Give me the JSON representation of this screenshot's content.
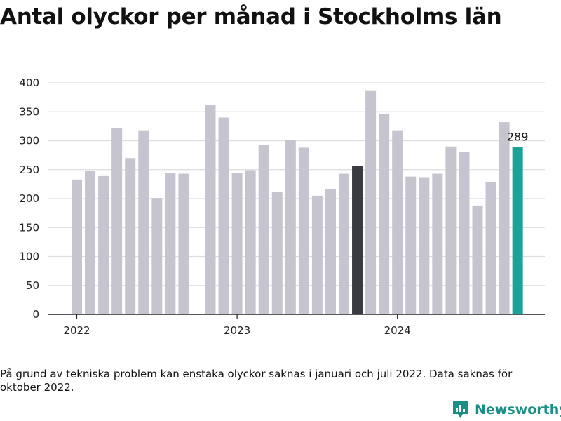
{
  "title": "Antal olyckor per månad i Stockholms län",
  "note": "På grund av tekniska problem kan enstaka olyckor saknas i januari och juli 2022. Data saknas för oktober 2022.",
  "brand": "Newsworthy",
  "colors": {
    "bar": "#c6c4cf",
    "highlight": "#3a3a42",
    "current": "#1aa398",
    "grid": "#dddddd",
    "axis": "#222222"
  },
  "chart_data": {
    "type": "bar",
    "title": "Antal olyckor per månad i Stockholms län",
    "xlabel": "",
    "ylabel": "",
    "ylim": [
      0,
      400
    ],
    "yticks": [
      0,
      50,
      100,
      150,
      200,
      250,
      300,
      350,
      400
    ],
    "xtick_labels": [
      "2022",
      "2023",
      "2024"
    ],
    "grid": true,
    "categories": [
      "2022-01",
      "2022-02",
      "2022-03",
      "2022-04",
      "2022-05",
      "2022-06",
      "2022-07",
      "2022-08",
      "2022-09",
      "2022-10",
      "2022-11",
      "2022-12",
      "2023-01",
      "2023-02",
      "2023-03",
      "2023-04",
      "2023-05",
      "2023-06",
      "2023-07",
      "2023-08",
      "2023-09",
      "2023-10",
      "2023-11",
      "2023-12",
      "2024-01",
      "2024-02",
      "2024-03",
      "2024-04",
      "2024-05",
      "2024-06",
      "2024-07",
      "2024-08",
      "2024-09",
      "2024-10"
    ],
    "values": [
      233,
      248,
      239,
      322,
      270,
      318,
      201,
      244,
      243,
      null,
      362,
      340,
      244,
      249,
      293,
      212,
      301,
      288,
      205,
      216,
      243,
      256,
      387,
      346,
      318,
      238,
      237,
      243,
      290,
      280,
      188,
      228,
      332,
      289
    ],
    "highlight_index": 21,
    "current_index": 33,
    "value_label": "289"
  }
}
